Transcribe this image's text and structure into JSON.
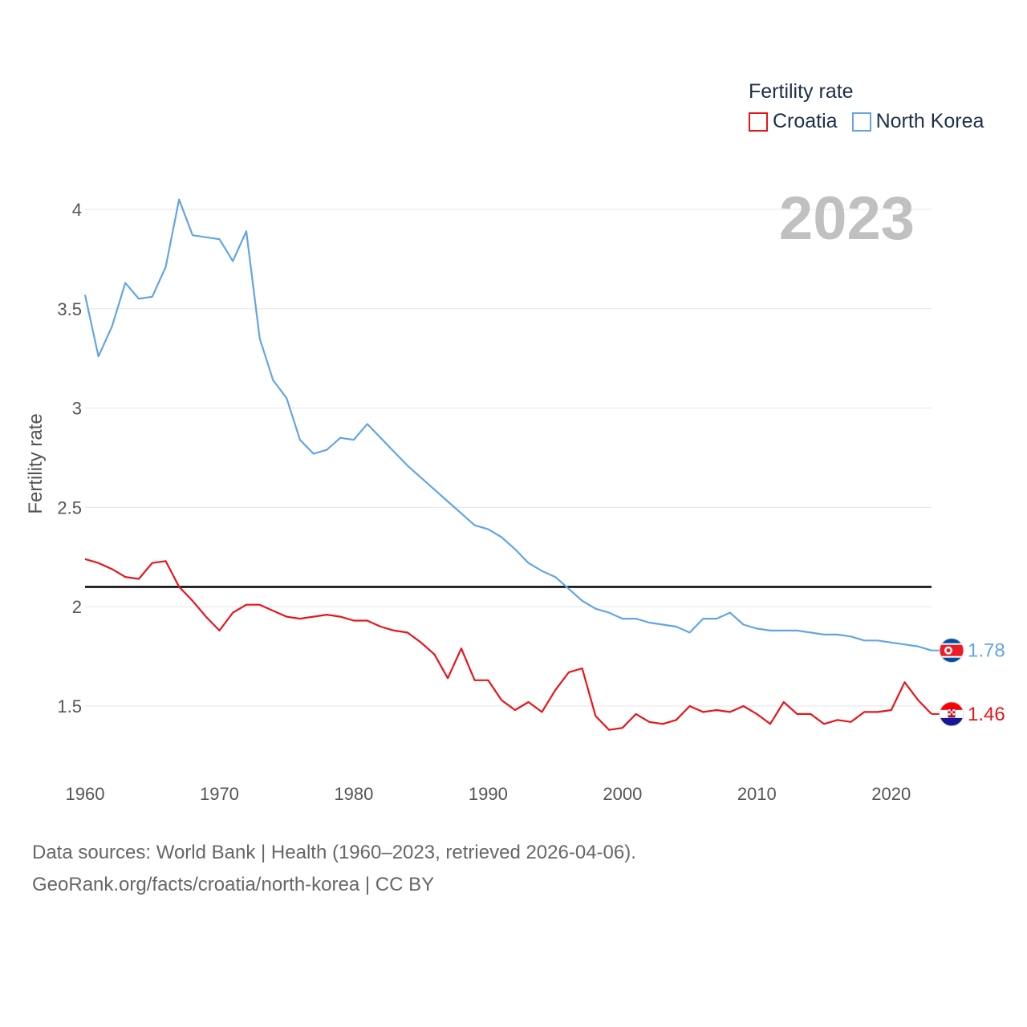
{
  "legend": {
    "title": "Fertility rate",
    "items": [
      {
        "name": "Croatia",
        "color": "#e8141b"
      },
      {
        "name": "North Korea",
        "color": "#63a5e3"
      }
    ]
  },
  "year_label": "2023",
  "footer": {
    "line1": "Data sources: World Bank | Health (1960–2023, retrieved 2026-04-06).",
    "line2": "GeoRank.org/facts/croatia/north-korea | CC BY"
  },
  "chart_data": {
    "type": "line",
    "title": "Fertility rate",
    "xlabel": "",
    "ylabel": "Fertility rate",
    "xlim": [
      1960,
      2023
    ],
    "ylim": [
      1.2,
      4.2
    ],
    "x_ticks": [
      1960,
      1970,
      1980,
      1990,
      2000,
      2010,
      2020
    ],
    "y_ticks": [
      1.5,
      2,
      2.5,
      3,
      3.5,
      4
    ],
    "y_tick_labels": [
      "1.5",
      "2",
      "2.5",
      "3",
      "3.5",
      "4"
    ],
    "reference_line": {
      "y": 2.1,
      "color": "#000000"
    },
    "x": [
      1960,
      1961,
      1962,
      1963,
      1964,
      1965,
      1966,
      1967,
      1968,
      1969,
      1970,
      1971,
      1972,
      1973,
      1974,
      1975,
      1976,
      1977,
      1978,
      1979,
      1980,
      1981,
      1982,
      1983,
      1984,
      1985,
      1986,
      1987,
      1988,
      1989,
      1990,
      1991,
      1992,
      1993,
      1994,
      1995,
      1996,
      1997,
      1998,
      1999,
      2000,
      2001,
      2002,
      2003,
      2004,
      2005,
      2006,
      2007,
      2008,
      2009,
      2010,
      2011,
      2012,
      2013,
      2014,
      2015,
      2016,
      2017,
      2018,
      2019,
      2020,
      2021,
      2022,
      2023
    ],
    "series": [
      {
        "name": "North Korea",
        "color": "#63a5e3",
        "end_label": "1.78",
        "values": [
          3.57,
          3.26,
          3.41,
          3.63,
          3.55,
          3.56,
          3.71,
          4.05,
          3.87,
          3.86,
          3.85,
          3.74,
          3.89,
          3.35,
          3.14,
          3.05,
          2.84,
          2.77,
          2.79,
          2.85,
          2.84,
          2.92,
          2.85,
          2.78,
          2.71,
          2.65,
          2.59,
          2.53,
          2.47,
          2.41,
          2.39,
          2.35,
          2.29,
          2.22,
          2.18,
          2.15,
          2.09,
          2.03,
          1.99,
          1.97,
          1.94,
          1.94,
          1.92,
          1.91,
          1.9,
          1.87,
          1.94,
          1.94,
          1.97,
          1.91,
          1.89,
          1.88,
          1.88,
          1.88,
          1.87,
          1.86,
          1.86,
          1.85,
          1.83,
          1.83,
          1.82,
          1.81,
          1.8,
          1.78
        ]
      },
      {
        "name": "Croatia",
        "color": "#e8141b",
        "end_label": "1.46",
        "values": [
          2.24,
          2.22,
          2.19,
          2.15,
          2.14,
          2.22,
          2.23,
          2.1,
          2.03,
          1.95,
          1.88,
          1.97,
          2.01,
          2.01,
          1.98,
          1.95,
          1.94,
          1.95,
          1.96,
          1.95,
          1.93,
          1.93,
          1.9,
          1.88,
          1.87,
          1.82,
          1.76,
          1.64,
          1.79,
          1.63,
          1.63,
          1.53,
          1.48,
          1.52,
          1.47,
          1.58,
          1.67,
          1.69,
          1.45,
          1.38,
          1.39,
          1.46,
          1.42,
          1.41,
          1.43,
          1.5,
          1.47,
          1.48,
          1.47,
          1.5,
          1.46,
          1.41,
          1.52,
          1.46,
          1.46,
          1.41,
          1.43,
          1.42,
          1.47,
          1.47,
          1.48,
          1.62,
          1.53,
          1.46
        ]
      }
    ]
  }
}
